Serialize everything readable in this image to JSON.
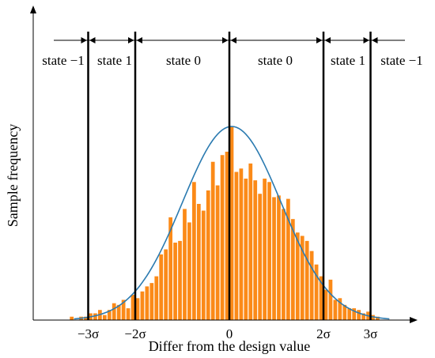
{
  "chart_data": {
    "type": "bar",
    "title": "",
    "xlabel": "Differ from the design value",
    "ylabel": "Sample frequency",
    "x_unit": "sigma",
    "xlim": [
      -4.4,
      3.8
    ],
    "ylim": [
      0,
      1.15
    ],
    "grid": false,
    "legend": "none",
    "bar_width": 0.1,
    "bar_color": "#fb8a18",
    "curve_color": "#2a7ab0",
    "line_color": "#000000",
    "bins": [
      {
        "x": -3.35,
        "y": 0.02
      },
      {
        "x": -3.25,
        "y": 0.0
      },
      {
        "x": -3.15,
        "y": 0.02
      },
      {
        "x": -3.05,
        "y": 0.02
      },
      {
        "x": -2.95,
        "y": 0.04
      },
      {
        "x": -2.85,
        "y": 0.04
      },
      {
        "x": -2.75,
        "y": 0.06
      },
      {
        "x": -2.65,
        "y": 0.03
      },
      {
        "x": -2.55,
        "y": 0.06
      },
      {
        "x": -2.45,
        "y": 0.1
      },
      {
        "x": -2.35,
        "y": 0.09
      },
      {
        "x": -2.25,
        "y": 0.12
      },
      {
        "x": -2.15,
        "y": 0.07
      },
      {
        "x": -2.05,
        "y": 0.15
      },
      {
        "x": -1.95,
        "y": 0.13
      },
      {
        "x": -1.85,
        "y": 0.17
      },
      {
        "x": -1.75,
        "y": 0.2
      },
      {
        "x": -1.65,
        "y": 0.22
      },
      {
        "x": -1.55,
        "y": 0.26
      },
      {
        "x": -1.45,
        "y": 0.39
      },
      {
        "x": -1.35,
        "y": 0.42
      },
      {
        "x": -1.25,
        "y": 0.61
      },
      {
        "x": -1.15,
        "y": 0.46
      },
      {
        "x": -1.05,
        "y": 0.47
      },
      {
        "x": -0.95,
        "y": 0.66
      },
      {
        "x": -0.85,
        "y": 0.58
      },
      {
        "x": -0.75,
        "y": 0.82
      },
      {
        "x": -0.65,
        "y": 0.69
      },
      {
        "x": -0.55,
        "y": 0.65
      },
      {
        "x": -0.45,
        "y": 0.77
      },
      {
        "x": -0.35,
        "y": 0.94
      },
      {
        "x": -0.25,
        "y": 0.8
      },
      {
        "x": -0.15,
        "y": 0.98
      },
      {
        "x": -0.05,
        "y": 1.0
      },
      {
        "x": 0.05,
        "y": 1.15
      },
      {
        "x": 0.15,
        "y": 0.88
      },
      {
        "x": 0.25,
        "y": 0.9
      },
      {
        "x": 0.35,
        "y": 0.84
      },
      {
        "x": 0.45,
        "y": 0.93
      },
      {
        "x": 0.55,
        "y": 0.83
      },
      {
        "x": 0.65,
        "y": 0.75
      },
      {
        "x": 0.75,
        "y": 0.84
      },
      {
        "x": 0.85,
        "y": 0.82
      },
      {
        "x": 0.95,
        "y": 0.73
      },
      {
        "x": 1.05,
        "y": 0.74
      },
      {
        "x": 1.15,
        "y": 0.66
      },
      {
        "x": 1.25,
        "y": 0.72
      },
      {
        "x": 1.35,
        "y": 0.6
      },
      {
        "x": 1.45,
        "y": 0.52
      },
      {
        "x": 1.55,
        "y": 0.5
      },
      {
        "x": 1.65,
        "y": 0.47
      },
      {
        "x": 1.75,
        "y": 0.41
      },
      {
        "x": 1.85,
        "y": 0.33
      },
      {
        "x": 1.95,
        "y": 0.26
      },
      {
        "x": 2.05,
        "y": 0.18
      },
      {
        "x": 2.15,
        "y": 0.24
      },
      {
        "x": 2.25,
        "y": 0.12
      },
      {
        "x": 2.35,
        "y": 0.13
      },
      {
        "x": 2.45,
        "y": 0.09
      },
      {
        "x": 2.55,
        "y": 0.07
      },
      {
        "x": 2.65,
        "y": 0.07
      },
      {
        "x": 2.75,
        "y": 0.06
      },
      {
        "x": 2.85,
        "y": 0.04
      },
      {
        "x": 2.95,
        "y": 0.05
      },
      {
        "x": 3.05,
        "y": 0.03
      },
      {
        "x": 3.15,
        "y": 0.02
      }
    ],
    "curve": {
      "type": "normal",
      "mean": 0.05,
      "sd": 1.05,
      "peak": 1.15
    },
    "boundaries": [
      -3,
      -2,
      0,
      2,
      3
    ],
    "tick_labels": [
      {
        "x": -3,
        "text": "−3σ"
      },
      {
        "x": -2,
        "text": "−2σ"
      },
      {
        "x": 0,
        "text": "0"
      },
      {
        "x": 2,
        "text": "2σ"
      },
      {
        "x": 3,
        "text": "3σ"
      }
    ],
    "state_regions": [
      {
        "from": -4.4,
        "to": -3,
        "label": "state −1"
      },
      {
        "from": -3,
        "to": -2,
        "label": "state 1"
      },
      {
        "from": -2,
        "to": 0,
        "label": "state 0"
      },
      {
        "from": 0,
        "to": 2,
        "label": "state 0"
      },
      {
        "from": 2,
        "to": 3,
        "label": "state 1"
      },
      {
        "from": 3,
        "to": 3.8,
        "label": "state −1"
      }
    ]
  }
}
